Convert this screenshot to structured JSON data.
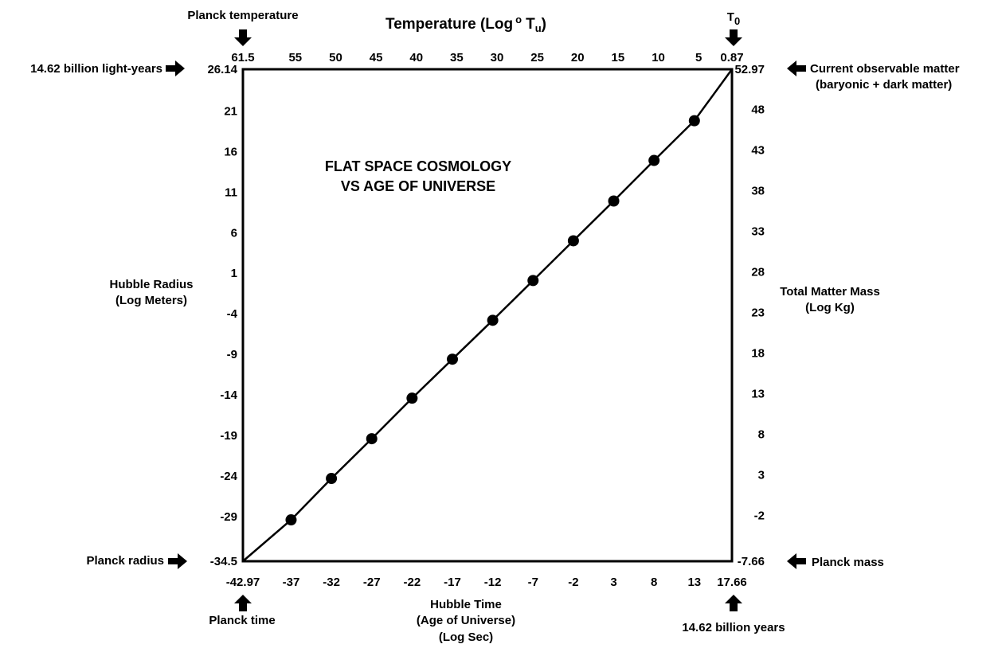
{
  "chart_data": {
    "type": "line",
    "title_lines": [
      "FLAT SPACE COSMOLOGY",
      "VS AGE OF UNIVERSE"
    ],
    "x_label_lines": [
      "Hubble Time",
      "(Age of Universe)",
      "(Log Sec)"
    ],
    "x_ticks": [
      "-42.97",
      "-37",
      "-32",
      "-27",
      "-22",
      "-17",
      "-12",
      "-7",
      "-2",
      "3",
      "8",
      "13",
      "17.66"
    ],
    "xlim": [
      -42.97,
      17.66
    ],
    "y_label_lines": [
      "Hubble Radius",
      "(Log Meters)"
    ],
    "y_ticks": [
      "26.14",
      "21",
      "16",
      "11",
      "6",
      "1",
      "-4",
      "-9",
      "-14",
      "-19",
      "-24",
      "-29",
      "-34.5"
    ],
    "ylim": [
      -34.5,
      26.14
    ],
    "top_axis": {
      "label": "Temperature (Log",
      "unit": "T",
      "unit_sub": "u",
      "ticks": [
        "61.5",
        "55",
        "50",
        "45",
        "40",
        "35",
        "30",
        "25",
        "20",
        "15",
        "10",
        "5",
        "0.87"
      ],
      "range": [
        61.5,
        0.87
      ]
    },
    "right_axis": {
      "label_lines": [
        "Total Matter Mass",
        "(Log Kg)"
      ],
      "ticks": [
        "52.97",
        "48",
        "43",
        "38",
        "33",
        "28",
        "23",
        "18",
        "13",
        "8",
        "3",
        "-2",
        "-7.66"
      ],
      "range": [
        -7.66,
        52.97
      ]
    },
    "series": [
      {
        "points": [
          {
            "x": -42.97,
            "y": -34.5
          },
          {
            "x": -37,
            "y": -29.4
          },
          {
            "x": -32,
            "y": -24.3
          },
          {
            "x": -27,
            "y": -19.4
          },
          {
            "x": -22,
            "y": -14.4
          },
          {
            "x": -17,
            "y": -9.6
          },
          {
            "x": -12,
            "y": -4.8
          },
          {
            "x": -7,
            "y": 0.1
          },
          {
            "x": -2,
            "y": 5.0
          },
          {
            "x": 3,
            "y": 9.9
          },
          {
            "x": 8,
            "y": 14.9
          },
          {
            "x": 13,
            "y": 19.8
          },
          {
            "x": 17.66,
            "y": 26.14
          }
        ]
      }
    ],
    "annotations": {
      "planck_temperature": "Planck temperature",
      "t0": "T",
      "t0_sub": "0",
      "light_years": "14.62 billion light-years",
      "current_matter_1": "Current observable matter",
      "current_matter_2": "(baryonic + dark matter)",
      "planck_radius": "Planck radius",
      "planck_mass": "Planck mass",
      "planck_time": "Planck time",
      "billion_years": "14.62 billion years"
    },
    "colors": {
      "line": "#000000",
      "marker": "#000000",
      "background": "#ffffff"
    }
  }
}
